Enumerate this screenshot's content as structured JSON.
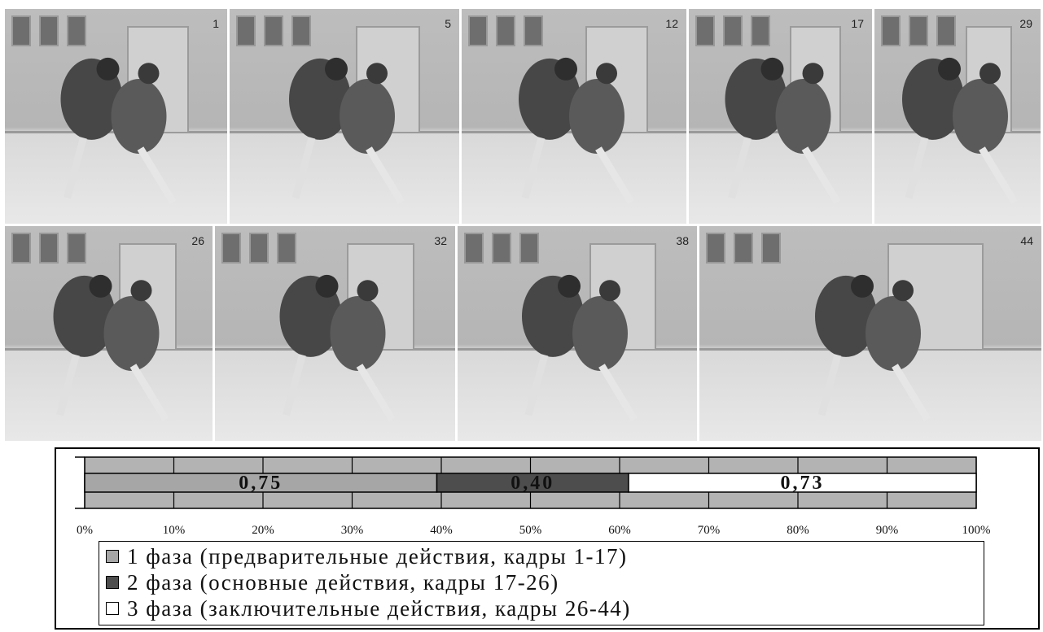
{
  "frames": {
    "row1": [
      {
        "number": "1"
      },
      {
        "number": "5"
      },
      {
        "number": "12"
      },
      {
        "number": "17"
      },
      {
        "number": "29"
      }
    ],
    "row2": [
      {
        "number": "26"
      },
      {
        "number": "32"
      },
      {
        "number": "38"
      },
      {
        "number": "44"
      }
    ]
  },
  "chart_data": {
    "type": "bar",
    "orientation": "horizontal",
    "stacked": true,
    "percent_axis": true,
    "xlim": [
      0,
      100
    ],
    "x_ticks": [
      "0%",
      "10%",
      "20%",
      "30%",
      "40%",
      "50%",
      "60%",
      "70%",
      "80%",
      "90%",
      "100%"
    ],
    "grid": true,
    "legend_position": "bottom",
    "series": [
      {
        "name": "1 фаза (предварительные действия, кадры 1-17)",
        "share_percent": 39.5,
        "data_label": "0,75",
        "color": "#a6a6a6"
      },
      {
        "name": "2 фаза (основные действия, кадры 17-26)",
        "share_percent": 21.5,
        "data_label": "0,40",
        "color": "#4d4d4d"
      },
      {
        "name": "3 фаза (заключительные действия, кадры 26-44)",
        "share_percent": 39.0,
        "data_label": "0,73",
        "color": "#ffffff"
      }
    ]
  }
}
